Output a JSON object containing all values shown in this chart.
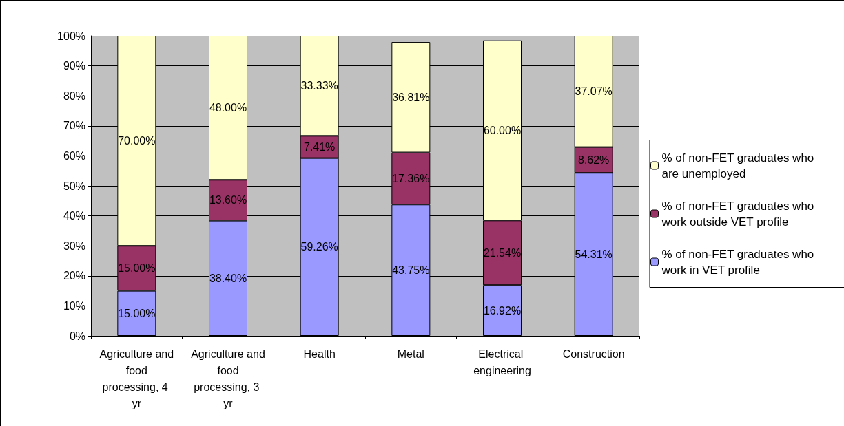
{
  "chart_data": {
    "type": "bar",
    "stacked": true,
    "categories": [
      "Agriculture and food processing, 4 yr",
      "Agriculture and food processing, 3 yr",
      "Health",
      "Metal",
      "Electrical engineering",
      "Construction"
    ],
    "series": [
      {
        "name": "% of non-FET graduates who work in VET profile",
        "color": "#9999ff",
        "values": [
          15.0,
          38.4,
          59.26,
          43.75,
          16.92,
          54.31
        ],
        "value_labels": [
          "15.00%",
          "38.40%",
          "59.26%",
          "43.75%",
          "16.92%",
          "54.31%"
        ]
      },
      {
        "name": "% of non-FET graduates who work outside VET profile",
        "color": "#993366",
        "values": [
          15.0,
          13.6,
          7.41,
          17.36,
          21.54,
          8.62
        ],
        "value_labels": [
          "15.00%",
          "13.60%",
          "7.41%",
          "17.36%",
          "21.54%",
          "8.62%"
        ]
      },
      {
        "name": "% of non-FET graduates who are unemployed",
        "color": "#ffffcc",
        "values": [
          70.0,
          48.0,
          33.33,
          36.81,
          60.0,
          37.07
        ],
        "value_labels": [
          "70.00%",
          "48.00%",
          "33.33%",
          "36.81%",
          "60.00%",
          "37.07%"
        ]
      }
    ],
    "ylim": [
      0,
      100
    ],
    "yticks": [
      {
        "value": 0,
        "label": "0%"
      },
      {
        "value": 10,
        "label": "10%"
      },
      {
        "value": 20,
        "label": "20%"
      },
      {
        "value": 30,
        "label": "30%"
      },
      {
        "value": 40,
        "label": "40%"
      },
      {
        "value": 50,
        "label": "50%"
      },
      {
        "value": 60,
        "label": "60%"
      },
      {
        "value": 70,
        "label": "70%"
      },
      {
        "value": 80,
        "label": "80%"
      },
      {
        "value": 90,
        "label": "90%"
      },
      {
        "value": 100,
        "label": "100%"
      }
    ],
    "grid": "y",
    "legend": "right"
  }
}
